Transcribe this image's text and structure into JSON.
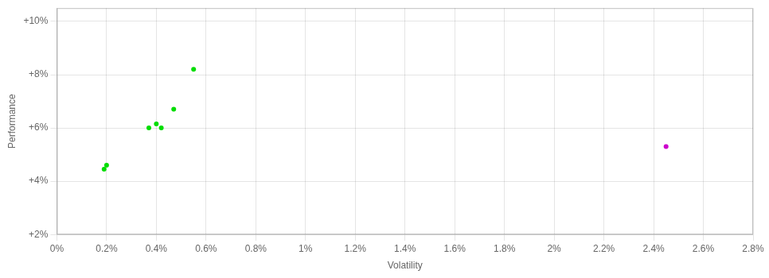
{
  "chart_data": {
    "type": "scatter",
    "xlabel": "Volatility",
    "ylabel": "Performance",
    "series": [
      {
        "color": "#00dd00",
        "x": [
          0.002,
          0.0019,
          0.0037,
          0.004,
          0.0042,
          0.0047,
          0.0055
        ],
        "values": [
          0.046,
          0.0445,
          0.06,
          0.0615,
          0.06,
          0.067,
          0.082
        ]
      },
      {
        "color": "#cc00cc",
        "x": [
          0.0245
        ],
        "values": [
          0.053
        ]
      }
    ],
    "xlim": [
      0,
      0.028
    ],
    "xticks": [
      {
        "value": 0,
        "label": "0%"
      },
      {
        "value": 0.002,
        "label": "0.2%"
      },
      {
        "value": 0.004,
        "label": "0.4%"
      },
      {
        "value": 0.006,
        "label": "0.6%"
      },
      {
        "value": 0.008,
        "label": "0.8%"
      },
      {
        "value": 0.01,
        "label": "1%"
      },
      {
        "value": 0.012,
        "label": "1.2%"
      },
      {
        "value": 0.014,
        "label": "1.4%"
      },
      {
        "value": 0.016,
        "label": "1.6%"
      },
      {
        "value": 0.018,
        "label": "1.8%"
      },
      {
        "value": 0.02,
        "label": "2%"
      },
      {
        "value": 0.022,
        "label": "2.2%"
      },
      {
        "value": 0.024,
        "label": "2.4%"
      },
      {
        "value": 0.026,
        "label": "2.6%"
      },
      {
        "value": 0.028,
        "label": "2.8%"
      }
    ],
    "ylim": [
      0.02,
      0.105
    ],
    "yticks": [
      {
        "value": 0.02,
        "label": "+2%"
      },
      {
        "value": 0.04,
        "label": "+4%"
      },
      {
        "value": 0.06,
        "label": "+6%"
      },
      {
        "value": 0.08,
        "label": "+8%"
      },
      {
        "value": 0.1,
        "label": "+10%"
      }
    ],
    "grid": true
  }
}
